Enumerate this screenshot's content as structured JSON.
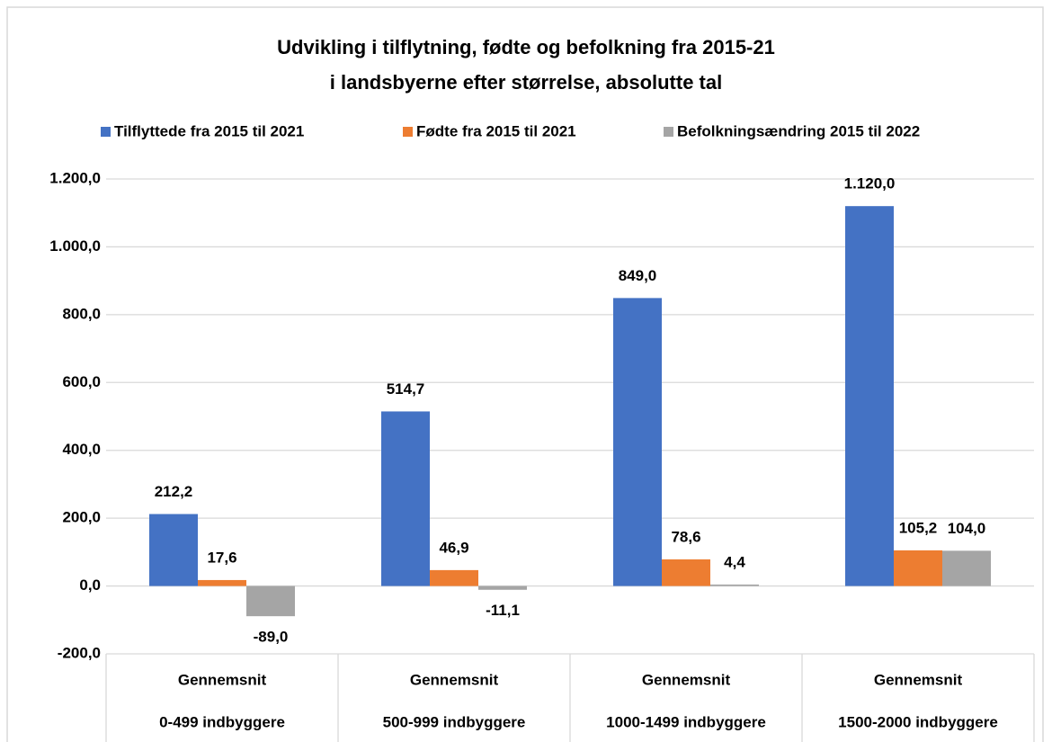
{
  "chart_data": {
    "type": "bar",
    "title": [
      "Udvikling i tilflytning, fødte og befolkning fra 2015-21",
      "i landsbyerne efter størrelse, absolutte tal"
    ],
    "categories": [
      [
        "Gennemsnit",
        "0-499 indbyggere"
      ],
      [
        "Gennemsnit",
        "500-999 indbyggere"
      ],
      [
        "Gennemsnit",
        "1000-1499 indbyggere"
      ],
      [
        "Gennemsnit",
        "1500-2000 indbyggere"
      ]
    ],
    "series": [
      {
        "name": "Tilflyttede fra 2015 til 2021",
        "color": "#4472c4",
        "values": [
          212.2,
          514.7,
          849.0,
          1120.0
        ],
        "value_labels": [
          "212,2",
          "514,7",
          "849,0",
          "1.120,0"
        ]
      },
      {
        "name": "Fødte fra 2015 til 2021",
        "color": "#ed7d31",
        "values": [
          17.6,
          46.9,
          78.6,
          105.2
        ],
        "value_labels": [
          "17,6",
          "46,9",
          "78,6",
          "105,2"
        ]
      },
      {
        "name": "Befolkningsændring 2015 til 2022",
        "color": "#a5a5a5",
        "values": [
          -89.0,
          -11.1,
          4.4,
          104.0
        ],
        "value_labels": [
          "-89,0",
          "-11,1",
          "4,4",
          "104,0"
        ]
      }
    ],
    "ylim": [
      -200,
      1200
    ],
    "yticks": [
      {
        "value": -200,
        "label": "-200,0"
      },
      {
        "value": 0,
        "label": "0,0"
      },
      {
        "value": 200,
        "label": "200,0"
      },
      {
        "value": 400,
        "label": "400,0"
      },
      {
        "value": 600,
        "label": "600,0"
      },
      {
        "value": 800,
        "label": "800,0"
      },
      {
        "value": 1000,
        "label": "1.000,0"
      },
      {
        "value": 1200,
        "label": "1.200,0"
      }
    ],
    "grid": true,
    "legend": "top"
  }
}
